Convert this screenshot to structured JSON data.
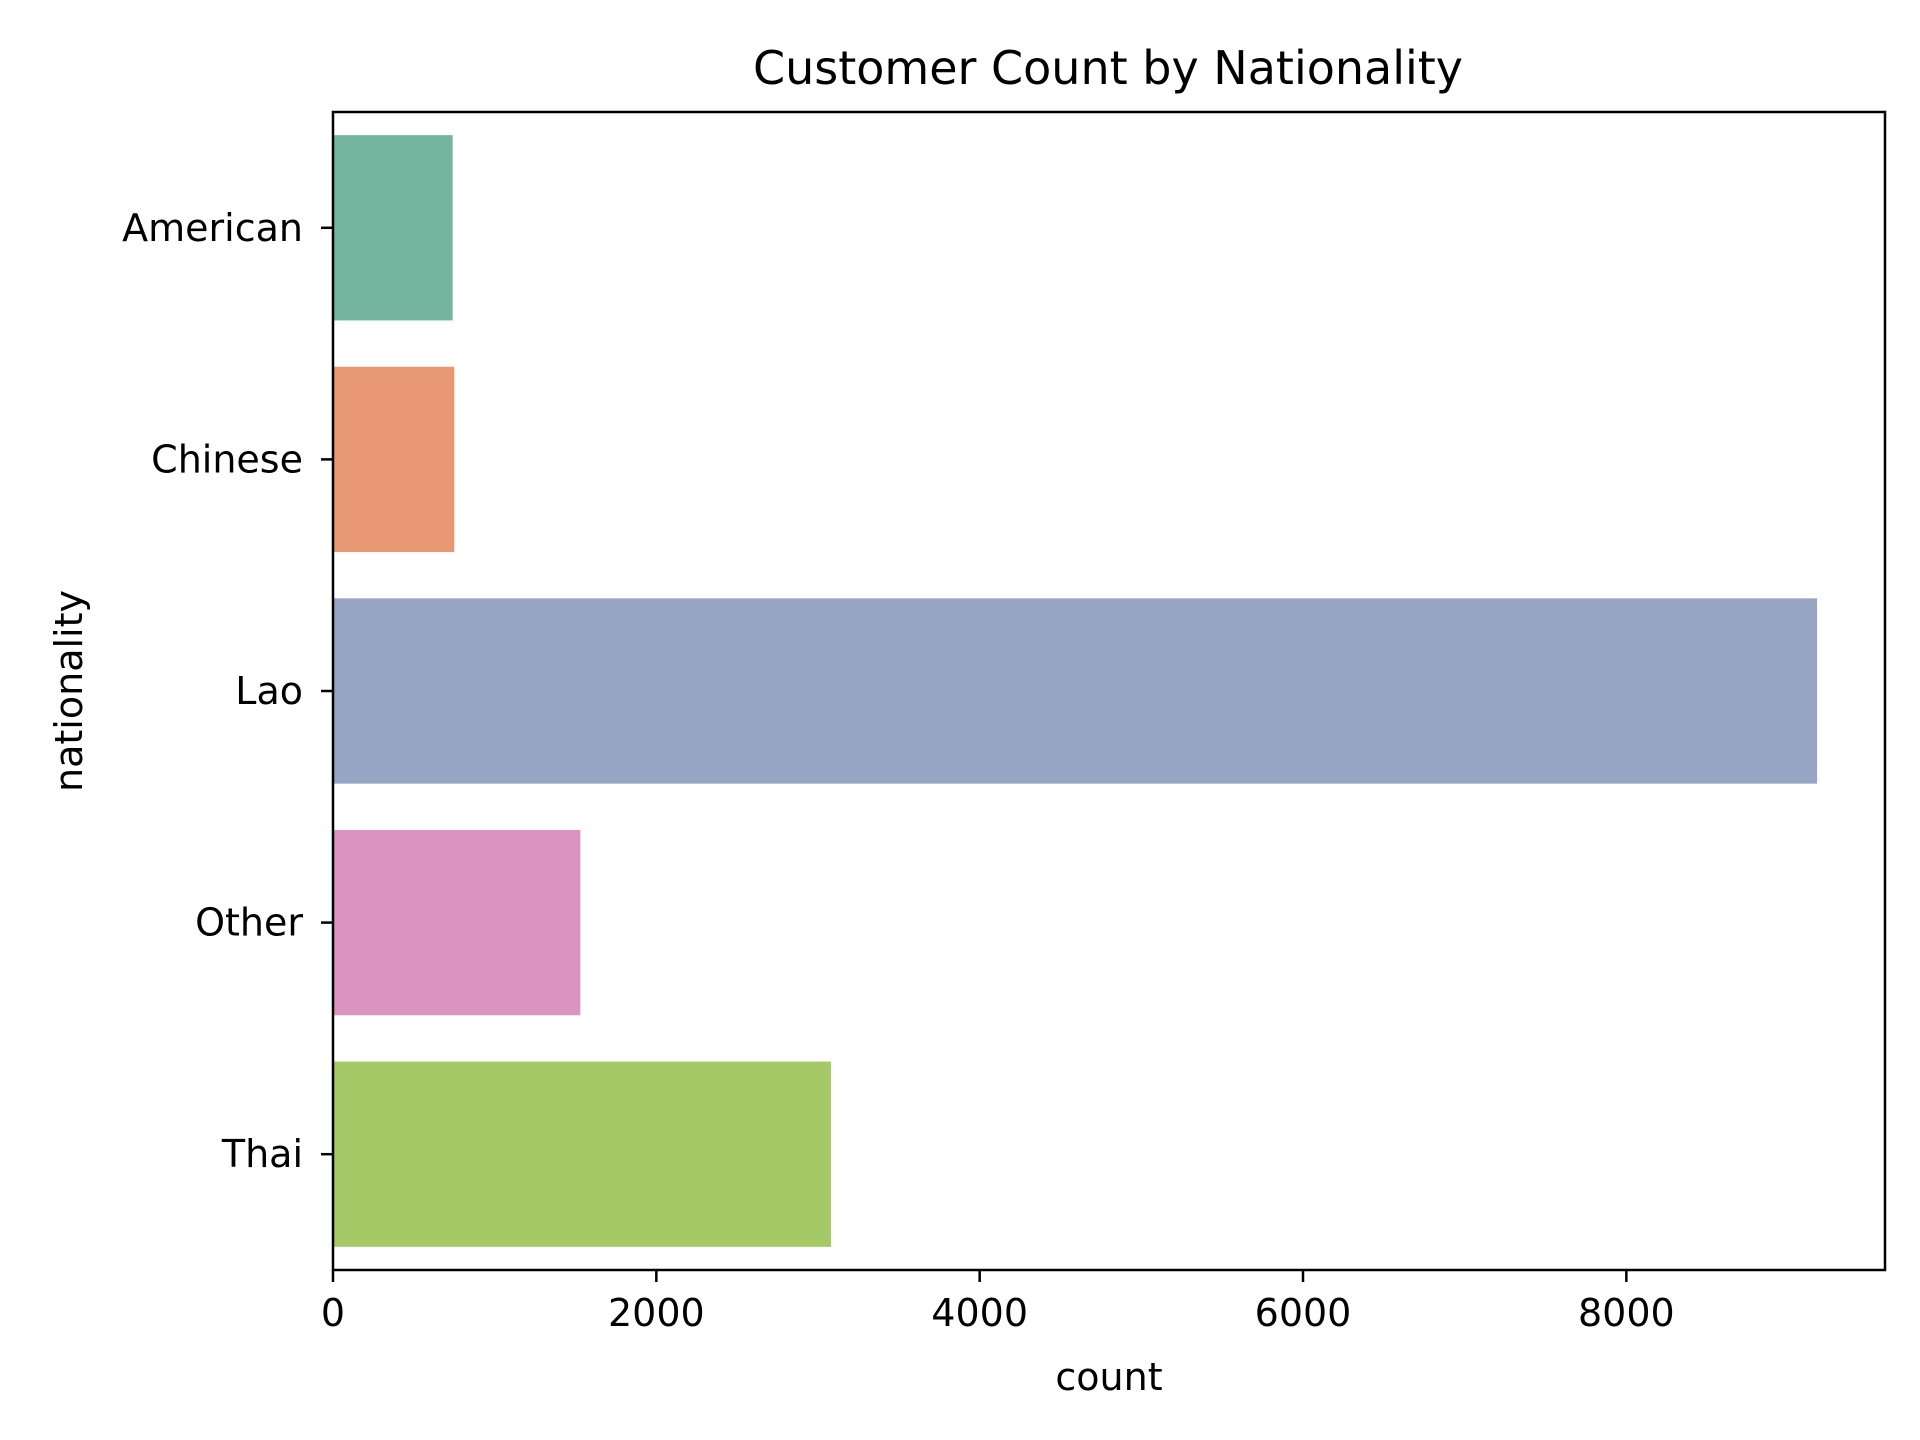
{
  "chart_data": {
    "type": "bar",
    "orientation": "horizontal",
    "title": "Customer Count by Nationality",
    "xlabel": "count",
    "ylabel": "nationality",
    "categories": [
      "American",
      "Chinese",
      "Lao",
      "Other",
      "Thai"
    ],
    "values": [
      740,
      750,
      9180,
      1530,
      3080
    ],
    "colors": [
      "#74b5a0",
      "#e89873",
      "#96a5c4",
      "#db94bf",
      "#a4c966"
    ],
    "xlim": [
      0,
      9600
    ],
    "xticks": [
      0,
      2000,
      4000,
      6000,
      8000
    ],
    "grid": false,
    "legend": "none"
  }
}
